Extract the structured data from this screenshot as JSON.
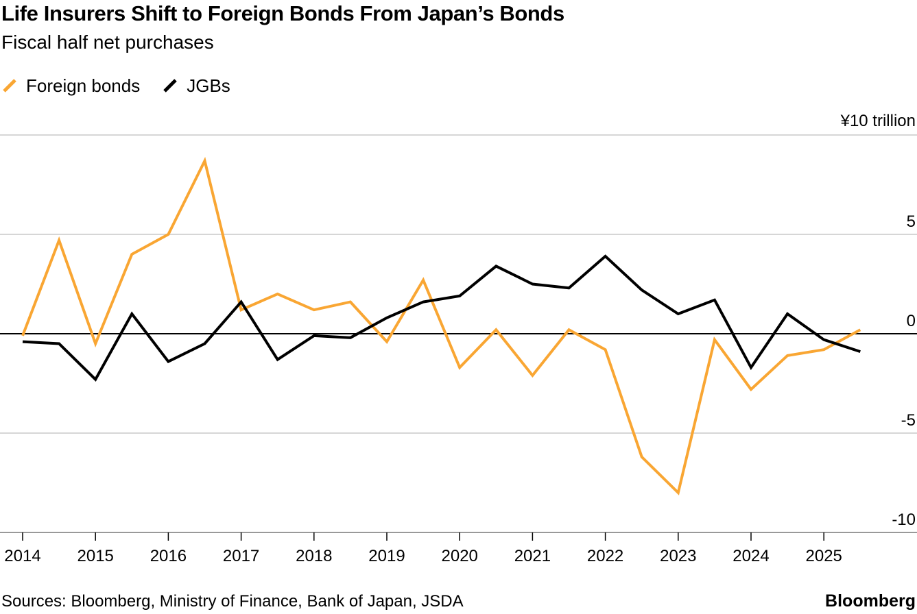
{
  "header": {
    "title": "Life Insurers Shift to Foreign Bonds From Japan’s Bonds",
    "subtitle": "Fiscal half net purchases"
  },
  "legend": {
    "items": [
      {
        "label": "Foreign bonds",
        "color": "#f9a633"
      },
      {
        "label": "JGBs",
        "color": "#000000"
      }
    ]
  },
  "footer": {
    "source": "Sources: Bloomberg, Ministry of Finance, Bank of Japan, JSDA",
    "brand": "Bloomberg"
  },
  "chart_data": {
    "type": "line",
    "title": "Life Insurers Shift to Foreign Bonds From Japan’s Bonds",
    "subtitle": "Fiscal half net purchases",
    "ylabel": "¥10 trillion",
    "unit_label": "¥10 trillion",
    "xlabel": "",
    "ylim": [
      -10,
      10
    ],
    "y_ticks": [
      5,
      0,
      -5,
      -10
    ],
    "y_tick_labels": [
      "5",
      "0",
      "-5",
      "-10"
    ],
    "x_ticks": [
      2014,
      2015,
      2016,
      2017,
      2018,
      2019,
      2020,
      2021,
      2022,
      2023,
      2024,
      2025
    ],
    "x_tick_labels": [
      "2014",
      "2015",
      "2016",
      "2017",
      "2018",
      "2019",
      "2020",
      "2021",
      "2022",
      "2023",
      "2024",
      "2025"
    ],
    "xlim": [
      2014,
      2026.2
    ],
    "x": [
      2014,
      2014.5,
      2015,
      2015.5,
      2016,
      2016.5,
      2017,
      2017.5,
      2018,
      2018.5,
      2019,
      2019.5,
      2020,
      2020.5,
      2021,
      2021.5,
      2022,
      2022.5,
      2023,
      2023.5,
      2024,
      2024.5,
      2025,
      2025.5
    ],
    "grid": true,
    "series": [
      {
        "name": "Foreign bonds",
        "color": "#f9a633",
        "values": [
          -0.1,
          4.7,
          -0.5,
          4.0,
          5.0,
          8.7,
          1.2,
          2.0,
          1.2,
          1.6,
          -0.4,
          2.7,
          -1.7,
          0.2,
          -2.1,
          0.2,
          -0.8,
          -6.2,
          -8.0,
          -0.3,
          -2.8,
          -1.1,
          -0.8,
          0.2
        ]
      },
      {
        "name": "JGBs",
        "color": "#000000",
        "values": [
          -0.4,
          -0.5,
          -2.3,
          1.0,
          -1.4,
          -0.5,
          1.6,
          -1.3,
          -0.1,
          -0.2,
          0.8,
          1.6,
          1.9,
          3.4,
          2.5,
          2.3,
          3.9,
          2.2,
          1.0,
          1.7,
          -1.7,
          1.0,
          -0.3,
          -0.9
        ]
      }
    ]
  }
}
